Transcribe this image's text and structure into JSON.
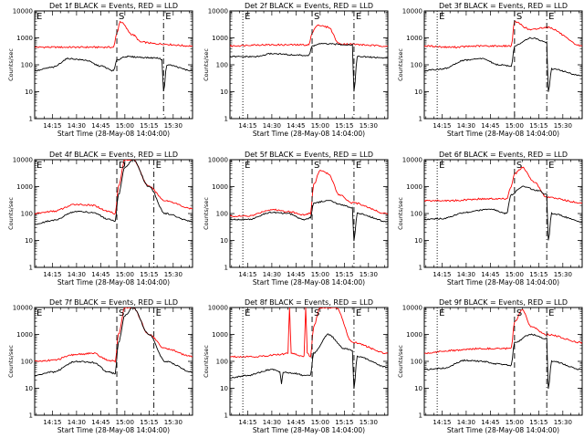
{
  "figure": {
    "background": "#ffffff"
  },
  "chart_data": [
    {
      "type": "line",
      "title": "Det 1f BLACK = Events, RED = LLD",
      "ylabel": "Counts/sec",
      "xlabel": "Start Time (28-May-08 14:04:00)",
      "yscale": "log",
      "ylim": [
        1,
        10000
      ],
      "xlim": [
        "14:04",
        "15:42"
      ],
      "ytick_labels": [
        "1",
        "10",
        "100",
        "1000",
        "10000"
      ],
      "xtick_labels": [
        "14:15",
        "14:30",
        "14:45",
        "15:00",
        "15:15",
        "15:30"
      ],
      "markers": [
        {
          "label": "E",
          "x": "14:04"
        },
        {
          "label": "S",
          "x": "14:55"
        },
        {
          "label": "E",
          "x": "15:24"
        }
      ],
      "series": [
        {
          "color": "#ff0000",
          "x": [
            "14:04",
            "14:20",
            "14:40",
            "14:53",
            "14:55",
            "14:57",
            "15:05",
            "15:10",
            "15:20",
            "15:42"
          ],
          "values": [
            450,
            450,
            450,
            450,
            1500,
            4000,
            1300,
            700,
            600,
            500
          ]
        },
        {
          "color": "#000000",
          "x": [
            "14:04",
            "14:15",
            "14:25",
            "14:35",
            "14:45",
            "14:53",
            "14:55",
            "15:00",
            "15:20",
            "15:23",
            "15:24",
            "15:26",
            "15:42"
          ],
          "values": [
            60,
            80,
            170,
            150,
            90,
            60,
            150,
            200,
            180,
            160,
            10,
            100,
            60
          ]
        }
      ]
    },
    {
      "type": "line",
      "title": "Det 2f BLACK = Events, RED = LLD",
      "ylabel": "Counts/sec",
      "xlabel": "Start Time (28-May-08 14:04:00)",
      "yscale": "log",
      "ylim": [
        1,
        10000
      ],
      "xlim": [
        "14:04",
        "15:42"
      ],
      "ytick_labels": [
        "1",
        "10",
        "100",
        "1000",
        "10000"
      ],
      "xtick_labels": [
        "14:15",
        "14:30",
        "14:45",
        "15:00",
        "15:15",
        "15:30"
      ],
      "markers": [
        {
          "label": "E",
          "x": "14:12"
        },
        {
          "label": "S",
          "x": "14:55"
        },
        {
          "label": "E",
          "x": "15:21"
        }
      ],
      "series": [
        {
          "color": "#ff0000",
          "x": [
            "14:04",
            "14:20",
            "14:40",
            "14:53",
            "14:55",
            "14:58",
            "15:05",
            "15:12",
            "15:42"
          ],
          "values": [
            500,
            550,
            550,
            550,
            1500,
            3000,
            2500,
            600,
            500
          ]
        },
        {
          "color": "#000000",
          "x": [
            "14:04",
            "14:20",
            "14:30",
            "14:45",
            "14:53",
            "14:55",
            "15:00",
            "15:20",
            "15:21",
            "15:23",
            "15:42"
          ],
          "values": [
            200,
            200,
            260,
            230,
            220,
            500,
            600,
            560,
            10,
            200,
            180
          ]
        }
      ]
    },
    {
      "type": "line",
      "title": "Det 3f BLACK = Events, RED = LLD",
      "ylabel": "Counts/sec",
      "xlabel": "Start Time (28-May-08 14:04:00)",
      "yscale": "log",
      "ylim": [
        1,
        10000
      ],
      "xlim": [
        "14:04",
        "15:42"
      ],
      "ytick_labels": [
        "1",
        "10",
        "100",
        "1000",
        "10000"
      ],
      "xtick_labels": [
        "14:15",
        "14:30",
        "14:45",
        "15:00",
        "15:15",
        "15:30"
      ],
      "markers": [
        {
          "label": "E",
          "x": "14:12"
        },
        {
          "label": "S",
          "x": "15:00"
        },
        {
          "label": "E",
          "x": "15:20"
        }
      ],
      "series": [
        {
          "color": "#ff0000",
          "x": [
            "14:04",
            "14:20",
            "14:40",
            "14:58",
            "15:00",
            "15:10",
            "15:20",
            "15:42"
          ],
          "values": [
            500,
            450,
            500,
            500,
            4000,
            2000,
            2500,
            500
          ]
        },
        {
          "color": "#000000",
          "x": [
            "14:04",
            "14:15",
            "14:30",
            "14:40",
            "14:50",
            "14:58",
            "15:00",
            "15:10",
            "15:20",
            "15:21",
            "15:23",
            "15:42"
          ],
          "values": [
            60,
            70,
            150,
            170,
            100,
            90,
            500,
            1000,
            700,
            10,
            70,
            40
          ]
        }
      ]
    },
    {
      "type": "line",
      "title": "Det 4f BLACK = Events, RED = LLD",
      "ylabel": "Counts/sec",
      "xlabel": "Start Time (28-May-08 14:04:00)",
      "yscale": "log",
      "ylim": [
        1,
        10000
      ],
      "xlim": [
        "14:04",
        "15:42"
      ],
      "ytick_labels": [
        "1",
        "10",
        "100",
        "1000",
        "10000"
      ],
      "xtick_labels": [
        "14:15",
        "14:30",
        "14:45",
        "15:00",
        "15:15",
        "15:30"
      ],
      "markers": [
        {
          "label": "E",
          "x": "14:04"
        },
        {
          "label": "D",
          "x": "14:55"
        },
        {
          "label": "E",
          "x": "15:18"
        }
      ],
      "series": [
        {
          "color": "#ff0000",
          "x": [
            "14:04",
            "14:15",
            "14:30",
            "14:40",
            "14:50",
            "14:54",
            "14:56",
            "15:00",
            "15:05",
            "15:15",
            "15:25",
            "15:42"
          ],
          "values": [
            100,
            120,
            220,
            200,
            120,
            100,
            1000,
            10000,
            10000,
            1000,
            300,
            150
          ]
        },
        {
          "color": "#000000",
          "x": [
            "14:04",
            "14:15",
            "14:30",
            "14:40",
            "14:50",
            "14:54",
            "14:56",
            "15:00",
            "15:05",
            "15:15",
            "15:25",
            "15:42"
          ],
          "values": [
            40,
            55,
            120,
            110,
            60,
            50,
            500,
            5000,
            10000,
            1000,
            100,
            50
          ]
        }
      ]
    },
    {
      "type": "line",
      "title": "Det 5f BLACK = Events, RED = LLD",
      "ylabel": "Counts/sec",
      "xlabel": "Start Time (28-May-08 14:04:00)",
      "yscale": "log",
      "ylim": [
        1,
        10000
      ],
      "xlim": [
        "14:04",
        "15:42"
      ],
      "ytick_labels": [
        "1",
        "10",
        "100",
        "1000",
        "10000"
      ],
      "xtick_labels": [
        "14:15",
        "14:30",
        "14:45",
        "15:00",
        "15:15",
        "15:30"
      ],
      "markers": [
        {
          "label": "E",
          "x": "14:12"
        },
        {
          "label": "S",
          "x": "14:55"
        },
        {
          "label": "E",
          "x": "15:21"
        }
      ],
      "series": [
        {
          "color": "#ff0000",
          "x": [
            "14:04",
            "14:15",
            "14:30",
            "14:40",
            "14:50",
            "14:54",
            "14:56",
            "15:00",
            "15:05",
            "15:12",
            "15:20",
            "15:42"
          ],
          "values": [
            80,
            80,
            140,
            120,
            90,
            100,
            1200,
            4000,
            3000,
            500,
            250,
            100
          ]
        },
        {
          "color": "#000000",
          "x": [
            "14:04",
            "14:15",
            "14:30",
            "14:40",
            "14:50",
            "14:54",
            "14:56",
            "15:05",
            "15:15",
            "15:20",
            "15:21",
            "15:23",
            "15:42"
          ],
          "values": [
            60,
            60,
            110,
            100,
            60,
            70,
            250,
            300,
            200,
            160,
            10,
            100,
            50
          ]
        }
      ]
    },
    {
      "type": "line",
      "title": "Det 6f BLACK = Events, RED = LLD",
      "ylabel": "Counts/sec",
      "xlabel": "Start Time (28-May-08 14:04:00)",
      "yscale": "log",
      "ylim": [
        1,
        10000
      ],
      "xlim": [
        "14:04",
        "15:42"
      ],
      "ytick_labels": [
        "1",
        "10",
        "100",
        "1000",
        "10000"
      ],
      "xtick_labels": [
        "14:15",
        "14:30",
        "14:45",
        "15:00",
        "15:15",
        "15:30"
      ],
      "markers": [
        {
          "label": "E",
          "x": "14:12"
        },
        {
          "label": "S",
          "x": "15:00"
        },
        {
          "label": "E",
          "x": "15:20"
        }
      ],
      "series": [
        {
          "color": "#ff0000",
          "x": [
            "14:04",
            "14:20",
            "14:40",
            "14:55",
            "14:58",
            "15:00",
            "15:05",
            "15:12",
            "15:20",
            "15:42"
          ],
          "values": [
            300,
            300,
            350,
            350,
            1000,
            3000,
            5000,
            1500,
            400,
            250
          ]
        },
        {
          "color": "#000000",
          "x": [
            "14:04",
            "14:15",
            "14:30",
            "14:45",
            "14:55",
            "14:58",
            "15:05",
            "15:15",
            "15:20",
            "15:21",
            "15:23",
            "15:42"
          ],
          "values": [
            60,
            65,
            110,
            150,
            100,
            500,
            1000,
            700,
            500,
            10,
            100,
            50
          ]
        }
      ]
    },
    {
      "type": "line",
      "title": "Det 7f BLACK = Events, RED = LLD",
      "ylabel": "Counts/sec",
      "xlabel": "Start Time (28-May-08 14:04:00)",
      "yscale": "log",
      "ylim": [
        1,
        10000
      ],
      "xlim": [
        "14:04",
        "15:42"
      ],
      "ytick_labels": [
        "1",
        "10",
        "100",
        "1000",
        "10000"
      ],
      "xtick_labels": [
        "14:15",
        "14:30",
        "14:45",
        "15:00",
        "15:15",
        "15:30"
      ],
      "markers": [
        {
          "label": "E",
          "x": "14:04"
        },
        {
          "label": "S",
          "x": "14:55"
        },
        {
          "label": "E",
          "x": "15:18"
        }
      ],
      "series": [
        {
          "color": "#ff0000",
          "x": [
            "14:04",
            "14:15",
            "14:30",
            "14:40",
            "14:50",
            "14:54",
            "14:56",
            "15:00",
            "15:05",
            "15:15",
            "15:25",
            "15:42"
          ],
          "values": [
            100,
            110,
            180,
            200,
            110,
            100,
            1000,
            10000,
            10000,
            1000,
            300,
            150
          ]
        },
        {
          "color": "#000000",
          "x": [
            "14:04",
            "14:15",
            "14:30",
            "14:40",
            "14:50",
            "14:54",
            "14:56",
            "15:00",
            "15:05",
            "15:15",
            "15:25",
            "15:42"
          ],
          "values": [
            30,
            40,
            100,
            90,
            40,
            35,
            500,
            5000,
            10000,
            1000,
            100,
            40
          ]
        }
      ]
    },
    {
      "type": "line",
      "title": "Det 8f BLACK = Events, RED = LLD",
      "ylabel": "Counts/sec",
      "xlabel": "Start Time (28-May-08 14:04:00)",
      "yscale": "log",
      "ylim": [
        1,
        10000
      ],
      "xlim": [
        "14:04",
        "15:42"
      ],
      "ytick_labels": [
        "1",
        "10",
        "100",
        "1000",
        "10000"
      ],
      "xtick_labels": [
        "14:15",
        "14:30",
        "14:45",
        "15:00",
        "15:15",
        "15:30"
      ],
      "markers": [
        {
          "label": "E",
          "x": "14:12"
        },
        {
          "label": "S",
          "x": "14:55"
        },
        {
          "label": "E",
          "x": "15:21"
        }
      ],
      "series": [
        {
          "color": "#ff0000",
          "x": [
            "14:04",
            "14:20",
            "14:35",
            "14:40",
            "14:41",
            "14:42",
            "14:50",
            "14:51",
            "14:52",
            "14:54",
            "14:56",
            "15:00",
            "15:10",
            "15:20",
            "15:42"
          ],
          "values": [
            150,
            150,
            180,
            200,
            10000,
            200,
            150,
            10000,
            200,
            150,
            2000,
            10000,
            10000,
            500,
            200
          ]
        },
        {
          "color": "#000000",
          "x": [
            "14:04",
            "14:15",
            "14:30",
            "14:35",
            "14:36",
            "14:37",
            "14:45",
            "14:50",
            "14:52",
            "14:54",
            "14:56",
            "15:05",
            "15:15",
            "15:20",
            "15:21",
            "15:23",
            "15:42"
          ],
          "values": [
            25,
            30,
            50,
            40,
            15,
            40,
            35,
            30,
            30,
            30,
            200,
            1000,
            300,
            250,
            10,
            150,
            60
          ]
        }
      ]
    },
    {
      "type": "line",
      "title": "Det 9f BLACK = Events, RED = LLD",
      "ylabel": "Counts/sec",
      "xlabel": "Start Time (28-May-08 14:04:00)",
      "yscale": "log",
      "ylim": [
        1,
        10000
      ],
      "xlim": [
        "14:04",
        "15:42"
      ],
      "ytick_labels": [
        "1",
        "10",
        "100",
        "1000",
        "10000"
      ],
      "xtick_labels": [
        "14:15",
        "14:30",
        "14:45",
        "15:00",
        "15:15",
        "15:30"
      ],
      "markers": [
        {
          "label": "E",
          "x": "14:12"
        },
        {
          "label": "S",
          "x": "15:00"
        },
        {
          "label": "E",
          "x": "15:20"
        }
      ],
      "series": [
        {
          "color": "#ff0000",
          "x": [
            "14:04",
            "14:20",
            "14:40",
            "14:58",
            "15:00",
            "15:05",
            "15:10",
            "15:20",
            "15:42"
          ],
          "values": [
            200,
            250,
            300,
            300,
            3000,
            8000,
            2000,
            1000,
            500
          ]
        },
        {
          "color": "#000000",
          "x": [
            "14:04",
            "14:15",
            "14:30",
            "14:40",
            "14:50",
            "14:58",
            "15:00",
            "15:10",
            "15:20",
            "15:21",
            "15:23",
            "15:42"
          ],
          "values": [
            50,
            55,
            110,
            100,
            80,
            70,
            500,
            1000,
            700,
            10,
            100,
            50
          ]
        }
      ]
    }
  ]
}
